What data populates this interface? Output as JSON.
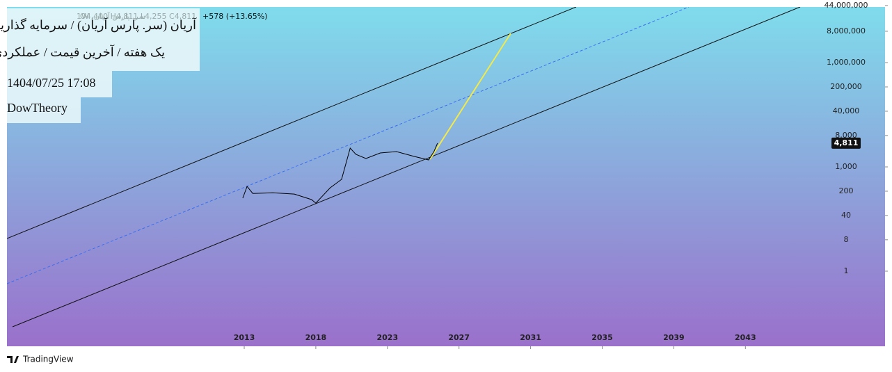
{
  "chart_data": {
    "type": "line",
    "title": "آریان (سر. پارس آریان) / سرمایه گذاریها",
    "subtitle": "یک هفته / آخرین قیمت / عملکردی",
    "date": "1404/07/25 17:08",
    "author": "DowTheory",
    "symbol": "سر. پارس آریان، 1W",
    "ohlc": "O4,400  H4,811  L4,255  C4,811",
    "change": "+578 (+13.65%)",
    "last_price": {
      "value": 4811,
      "label": "4,811"
    },
    "brand": "TradingView",
    "log_scale": true,
    "x": [
      2012.9,
      2013.2,
      2013.6,
      2015.0,
      2016.5,
      2017.7,
      2018.0,
      2019.0,
      2019.8,
      2020.4,
      2020.8,
      2021.5,
      2022.5,
      2023.5,
      2024.5,
      2025.3,
      2025.6,
      2025.8
    ],
    "series": [
      {
        "name": "آریان",
        "color": "#000000",
        "values": [
          126,
          275,
          172,
          180,
          165,
          115,
          91,
          250,
          437,
          3470,
          2290,
          1738,
          2512,
          2754,
          1995,
          1585,
          2754,
          4811
        ]
      }
    ],
    "xticks": [
      2013,
      2018,
      2023,
      2027,
      2031,
      2035,
      2039,
      2043
    ],
    "ylim": [
      0.0069,
      40000000
    ],
    "yticks": [
      {
        "value": 44000000,
        "label": "44,000,000"
      },
      {
        "value": 8000000,
        "label": "8,000,000"
      },
      {
        "value": 1000000,
        "label": "1,000,000"
      },
      {
        "value": 200000,
        "label": "200,000"
      },
      {
        "value": 40000,
        "label": "40,000"
      },
      {
        "value": 8000,
        "label": "8,000"
      },
      {
        "value": 1000,
        "label": "1,000"
      },
      200,
      40,
      8,
      1
    ]
  }
}
